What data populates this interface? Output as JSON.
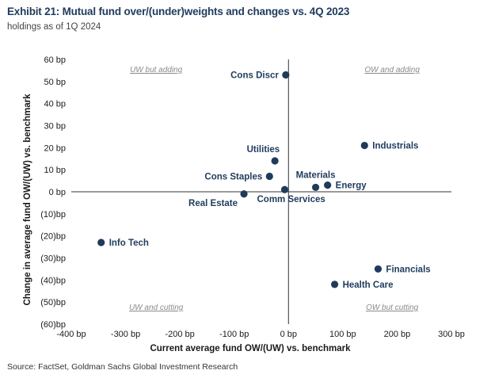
{
  "title": "Exhibit 21: Mutual fund over/(under)weights and changes vs. 4Q 2023",
  "subtitle": "holdings as of 1Q 2024",
  "source": "Source: FactSet, Goldman Sachs Global Investment Research",
  "colors": {
    "marker": "#1f3b5c",
    "axis": "#333333"
  },
  "chart_data": {
    "type": "scatter",
    "xlabel": "Current average fund OW/(UW) vs. benchmark",
    "ylabel": "Change in average fund OW/(UW) vs. benchmark",
    "xlim": [
      -400,
      300
    ],
    "ylim": [
      -60,
      60
    ],
    "grid": false,
    "x_ticks": [
      {
        "v": -400,
        "label": "-400 bp"
      },
      {
        "v": -300,
        "label": "-300 bp"
      },
      {
        "v": -200,
        "label": "-200 bp"
      },
      {
        "v": -100,
        "label": "-100 bp"
      },
      {
        "v": 0,
        "label": "0 bp"
      },
      {
        "v": 100,
        "label": "100 bp"
      },
      {
        "v": 200,
        "label": "200 bp"
      },
      {
        "v": 300,
        "label": "300 bp"
      }
    ],
    "y_ticks": [
      {
        "v": 60,
        "label": "60 bp"
      },
      {
        "v": 50,
        "label": "50 bp"
      },
      {
        "v": 40,
        "label": "40 bp"
      },
      {
        "v": 30,
        "label": "30 bp"
      },
      {
        "v": 20,
        "label": "20 bp"
      },
      {
        "v": 10,
        "label": "10 bp"
      },
      {
        "v": 0,
        "label": "0 bp"
      },
      {
        "v": -10,
        "label": "(10)bp"
      },
      {
        "v": -20,
        "label": "(20)bp"
      },
      {
        "v": -30,
        "label": "(30)bp"
      },
      {
        "v": -40,
        "label": "(40)bp"
      },
      {
        "v": -50,
        "label": "(50)bp"
      },
      {
        "v": -60,
        "label": "(60)bp"
      }
    ],
    "quadrant_labels": [
      {
        "text": "UW but adding",
        "corner": "top-left"
      },
      {
        "text": "OW and adding",
        "corner": "top-right"
      },
      {
        "text": "UW and cutting",
        "corner": "bottom-left"
      },
      {
        "text": "OW but cutting",
        "corner": "bottom-right"
      }
    ],
    "points": [
      {
        "name": "Cons Discr",
        "x": -5,
        "y": 53,
        "label_side": "left"
      },
      {
        "name": "Industrials",
        "x": 140,
        "y": 21,
        "label_side": "right"
      },
      {
        "name": "Utilities",
        "x": -25,
        "y": 14,
        "label_side": "above-left"
      },
      {
        "name": "Cons Staples",
        "x": -35,
        "y": 7,
        "label_side": "left"
      },
      {
        "name": "Materials",
        "x": 50,
        "y": 2,
        "label_side": "above"
      },
      {
        "name": "Energy",
        "x": 72,
        "y": 3,
        "label_side": "right"
      },
      {
        "name": "Real Estate",
        "x": -82,
        "y": -1,
        "label_side": "below-left"
      },
      {
        "name": "Comm Services",
        "x": -7,
        "y": 1,
        "label_side": "below-right"
      },
      {
        "name": "Info Tech",
        "x": -345,
        "y": -23,
        "label_side": "right"
      },
      {
        "name": "Financials",
        "x": 165,
        "y": -35,
        "label_side": "right"
      },
      {
        "name": "Health Care",
        "x": 85,
        "y": -42,
        "label_side": "right"
      }
    ]
  }
}
